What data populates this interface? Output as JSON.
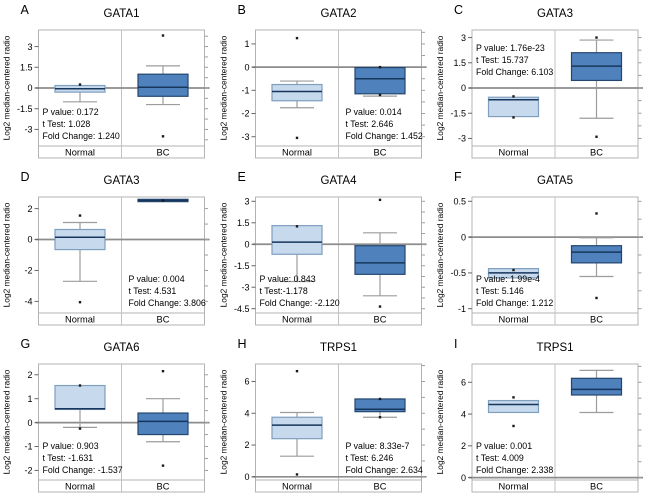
{
  "figure": {
    "background": "#ffffff",
    "colors": {
      "box_light_fill": "#c7d9ec",
      "box_light_stroke": "#7f9fbf",
      "box_dark_fill": "#4f81bd",
      "box_dark_stroke": "#24466e",
      "median_line": "#17365d",
      "whisker": "#9c9c9c",
      "plot_border": "#b3b3b3",
      "divider": "#c2c2c2",
      "zero_line": "#8c8c8c",
      "tick": "#666666",
      "text": "#000000",
      "outlier": "#1a1a1a"
    }
  },
  "chart_data": [
    {
      "panel_label": "A",
      "title": "GATA1",
      "type": "boxplot",
      "ylabel": "Log2 median-centered radio",
      "yticks": [
        3,
        1.5,
        0,
        -1.5,
        -3
      ],
      "ylim": [
        -4.2,
        4.2
      ],
      "categories": [
        "Normal",
        "BC"
      ],
      "stats": {
        "p_value_label": "P value: 0.172",
        "t_test_label": "t Test: 1.028",
        "fold_change_label": "Fold Change: 1.240"
      },
      "stats_position": "bottom-left",
      "series": [
        {
          "name": "Normal",
          "shade": "light",
          "q1": -0.3,
          "median": -0.05,
          "q3": 0.18,
          "whisker_low": -1.0,
          "whisker_high": null,
          "outliers": [
            0.25
          ]
        },
        {
          "name": "BC",
          "shade": "dark",
          "q1": -0.6,
          "median": 0.05,
          "q3": 1.0,
          "whisker_low": -1.2,
          "whisker_high": 1.6,
          "outliers": [
            3.8,
            -3.5
          ]
        }
      ]
    },
    {
      "panel_label": "B",
      "title": "GATA2",
      "type": "boxplot",
      "ylabel": "Log2 median-centered radio",
      "yticks": [
        1,
        0,
        -1,
        -2,
        -3
      ],
      "ylim": [
        -3.4,
        1.6
      ],
      "categories": [
        "Normal",
        "BC"
      ],
      "stats": {
        "p_value_label": "P value: 0.014",
        "t_test_label": "t Test: 2.646",
        "fold_change_label": "Fold Change: 1.452"
      },
      "stats_position": "bottom-right",
      "series": [
        {
          "name": "Normal",
          "shade": "light",
          "q1": -1.45,
          "median": -1.05,
          "q3": -0.75,
          "whisker_low": -1.75,
          "whisker_high": -0.6,
          "outliers": [
            1.25,
            -3.05
          ]
        },
        {
          "name": "BC",
          "shade": "dark",
          "q1": -1.15,
          "median": -0.5,
          "q3": -0.02,
          "whisker_low": -1.25,
          "whisker_high": null,
          "outliers": [
            0.0,
            -1.2
          ]
        }
      ]
    },
    {
      "panel_label": "C",
      "title": "GATA3",
      "type": "boxplot",
      "ylabel": "Log2 median-centered radio",
      "yticks": [
        3,
        1.5,
        0,
        -1.5,
        -3
      ],
      "ylim": [
        -3.45,
        3.45
      ],
      "categories": [
        "Normal",
        "BC"
      ],
      "stats": {
        "p_value_label": "P value: 1.76e-23",
        "t_test_label": "t Test: 15.737",
        "fold_change_label": "Fold Change: 6.103"
      },
      "stats_position": "top-left",
      "series": [
        {
          "name": "Normal",
          "shade": "light",
          "q1": -1.7,
          "median": -0.7,
          "q3": -0.55,
          "whisker_low": null,
          "whisker_high": null,
          "outliers": [
            -0.5,
            -1.75
          ]
        },
        {
          "name": "BC",
          "shade": "dark",
          "q1": 0.45,
          "median": 1.3,
          "q3": 2.1,
          "whisker_low": -1.8,
          "whisker_high": 2.85,
          "outliers": [
            3.0,
            -2.9
          ]
        }
      ]
    },
    {
      "panel_label": "D",
      "title": "GATA3",
      "type": "boxplot",
      "ylabel": "Log2 median-centered radio",
      "yticks": [
        2,
        0,
        -2,
        -4
      ],
      "ylim": [
        -4.75,
        2.75
      ],
      "categories": [
        "Normal",
        "BC"
      ],
      "stats": {
        "p_value_label": "P value: 0.004",
        "t_test_label": "t Test: 4.531",
        "fold_change_label": "Fold Change: 3.806"
      },
      "stats_position": "bottom-right",
      "series": [
        {
          "name": "Normal",
          "shade": "light",
          "q1": -0.65,
          "median": 0.15,
          "q3": 0.65,
          "whisker_low": -2.7,
          "whisker_high": 1.1,
          "outliers": [
            1.55,
            -4.05
          ]
        },
        {
          "name": "BC",
          "shade": "dark",
          "q1": 2.45,
          "median": 2.52,
          "q3": 2.6,
          "whisker_low": null,
          "whisker_high": null,
          "outliers": [
            2.52
          ]
        }
      ]
    },
    {
      "panel_label": "E",
      "title": "GATA4",
      "type": "boxplot",
      "ylabel": "Log2 median-centered radio",
      "yticks": [
        3,
        1.5,
        0,
        -1.5,
        -3,
        -4.5
      ],
      "ylim": [
        -4.8,
        3.3
      ],
      "categories": [
        "Normal",
        "BC"
      ],
      "stats": {
        "p_value_label": "P value: 0.843",
        "t_test_label": "t Test:-1.178",
        "fold_change_label": "Fold Change: -2.120"
      },
      "stats_position": "bottom-left",
      "series": [
        {
          "name": "Normal",
          "shade": "light",
          "q1": -0.7,
          "median": 0.15,
          "q3": 1.3,
          "whisker_low": -2.6,
          "whisker_high": null,
          "outliers": [
            1.25
          ]
        },
        {
          "name": "BC",
          "shade": "dark",
          "q1": -2.1,
          "median": -1.3,
          "q3": -0.1,
          "whisker_low": -3.6,
          "whisker_high": 0.8,
          "outliers": [
            3.1,
            -4.35
          ]
        }
      ]
    },
    {
      "panel_label": "F",
      "title": "GATA5",
      "type": "boxplot",
      "ylabel": "Log2 median-centered radio",
      "yticks": [
        0.5,
        0,
        -0.5,
        -1
      ],
      "ylim": [
        -1.06,
        0.56
      ],
      "categories": [
        "Normal",
        "BC"
      ],
      "stats": {
        "p_value_label": "P value: 1.99e-4",
        "t_test_label": "t Test: 5.146",
        "fold_change_label": "Fold Change: 1.212"
      },
      "stats_position": "bottom-left",
      "series": [
        {
          "name": "Normal",
          "shade": "light",
          "q1": -0.57,
          "median": -0.5,
          "q3": -0.44,
          "whisker_low": null,
          "whisker_high": null,
          "outliers": [
            -0.46
          ]
        },
        {
          "name": "BC",
          "shade": "dark",
          "q1": -0.36,
          "median": -0.21,
          "q3": -0.12,
          "whisker_low": -0.55,
          "whisker_high": -0.01,
          "outliers": [
            0.33,
            -0.85
          ]
        }
      ]
    },
    {
      "panel_label": "G",
      "title": "GATA6",
      "type": "boxplot",
      "ylabel": "Log2 median-centered radio",
      "yticks": [
        2,
        1,
        0,
        -1,
        -2
      ],
      "ylim": [
        -2.4,
        2.45
      ],
      "categories": [
        "Normal",
        "BC"
      ],
      "stats": {
        "p_value_label": "P value: 0.903",
        "t_test_label": "t Test: -1.631",
        "fold_change_label": "Fold Change: -1.537"
      },
      "stats_position": "bottom-left",
      "series": [
        {
          "name": "Normal",
          "shade": "light",
          "q1": 0.55,
          "median": 0.58,
          "q3": 1.55,
          "whisker_low": -0.2,
          "whisker_high": null,
          "outliers": [
            1.55,
            -0.25
          ]
        },
        {
          "name": "BC",
          "shade": "dark",
          "q1": -0.5,
          "median": 0.05,
          "q3": 0.4,
          "whisker_low": -0.8,
          "whisker_high": 1.0,
          "outliers": [
            2.15,
            -1.8
          ]
        }
      ]
    },
    {
      "panel_label": "H",
      "title": "TRPS1",
      "type": "boxplot",
      "ylabel": "Log2 median-centered radio",
      "yticks": [
        6,
        4,
        2,
        0
      ],
      "ylim": [
        -0.2,
        7.1
      ],
      "categories": [
        "Normal",
        "BC"
      ],
      "stats": {
        "p_value_label": "P value: 8.33e-7",
        "t_test_label": "t Test: 6.246",
        "fold_change_label": "Fold Change: 2.634"
      },
      "stats_position": "bottom-right",
      "series": [
        {
          "name": "Normal",
          "shade": "light",
          "q1": 2.4,
          "median": 3.25,
          "q3": 3.75,
          "whisker_low": 1.3,
          "whisker_high": 4.05,
          "outliers": [
            6.65,
            0.15
          ]
        },
        {
          "name": "BC",
          "shade": "dark",
          "q1": 4.1,
          "median": 4.25,
          "q3": 4.9,
          "whisker_low": 3.75,
          "whisker_high": null,
          "outliers": [
            4.9,
            3.75
          ]
        }
      ]
    },
    {
      "panel_label": "I",
      "title": "TRPS1",
      "type": "boxplot",
      "ylabel": "Log2 median-centered radio",
      "yticks": [
        6,
        4,
        2,
        0
      ],
      "ylim": [
        -0.15,
        7.15
      ],
      "categories": [
        "Normal",
        "BC"
      ],
      "stats": {
        "p_value_label": "P value: 0.001",
        "t_test_label": "t Test: 4.009",
        "fold_change_label": "Fold Change: 2.338"
      },
      "stats_position": "bottom-left",
      "series": [
        {
          "name": "Normal",
          "shade": "light",
          "q1": 4.1,
          "median": 4.6,
          "q3": 4.85,
          "whisker_low": null,
          "whisker_high": null,
          "outliers": [
            5.05,
            3.25
          ]
        },
        {
          "name": "BC",
          "shade": "dark",
          "q1": 5.2,
          "median": 5.55,
          "q3": 6.25,
          "whisker_low": 4.1,
          "whisker_high": 6.75,
          "outliers": []
        }
      ]
    }
  ]
}
